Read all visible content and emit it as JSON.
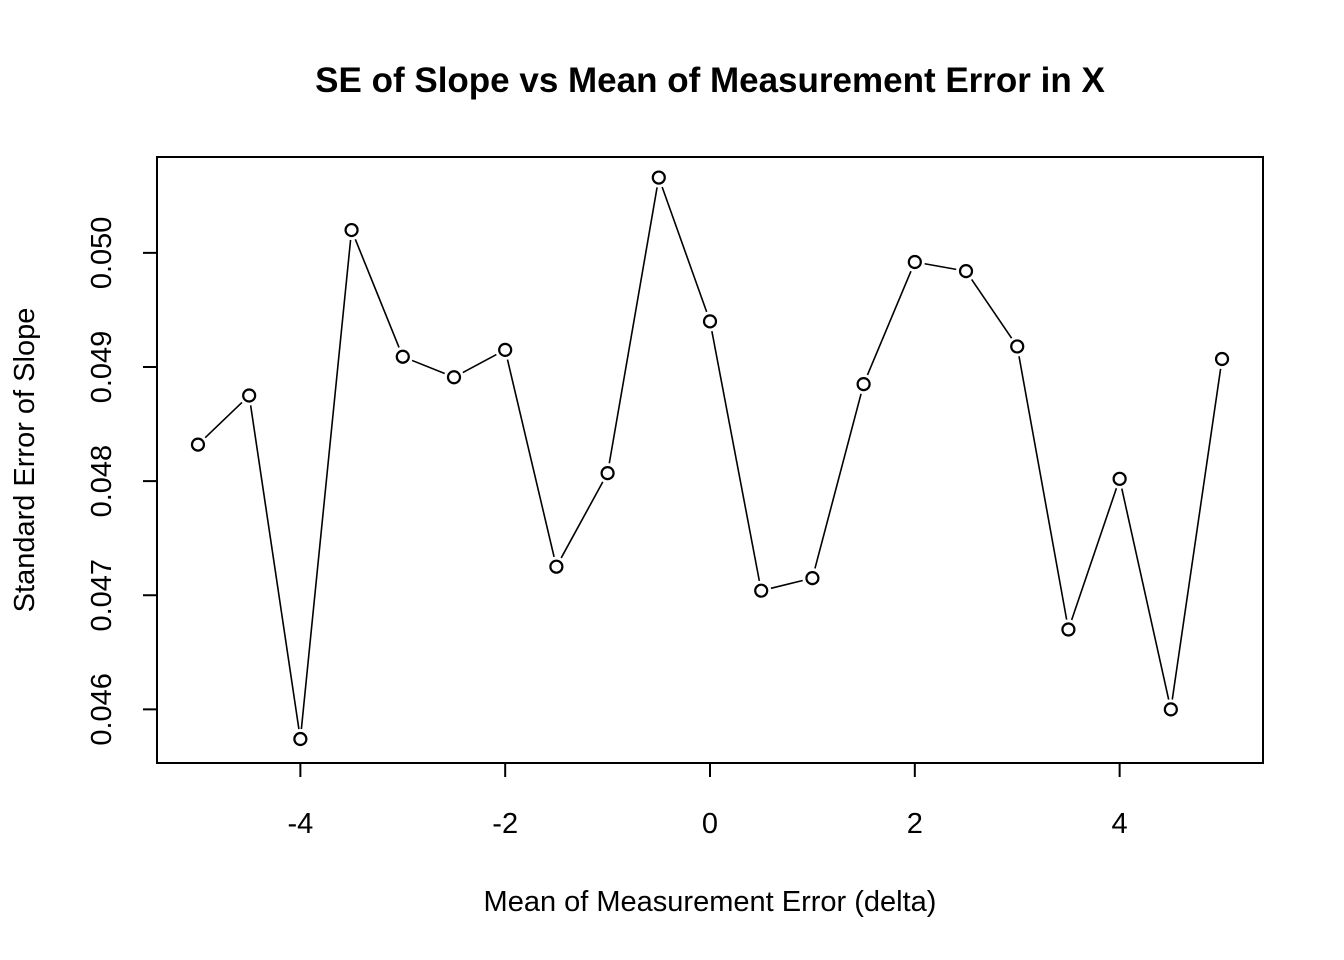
{
  "chart_data": {
    "type": "line",
    "title": "SE of Slope vs Mean of Measurement Error in X",
    "xlabel": "Mean of Measurement Error (delta)",
    "ylabel": "Standard Error of Slope",
    "style": "both points and lines (open circles joined by line segments)",
    "xlim": [
      -5.4,
      5.4
    ],
    "ylim": [
      0.04553,
      0.05084
    ],
    "xticks": [
      -4,
      -2,
      0,
      2,
      4
    ],
    "xtick_labels": [
      "-4",
      "-2",
      "0",
      "2",
      "4"
    ],
    "yticks": [
      0.046,
      0.047,
      0.048,
      0.049,
      0.05
    ],
    "ytick_labels": [
      "0.046",
      "0.047",
      "0.048",
      "0.049",
      "0.050"
    ],
    "grid": false,
    "legend": "none",
    "series": [
      {
        "x": [
          -5,
          -4.5,
          -4,
          -3.5,
          -3,
          -2.5,
          -2,
          -1.5,
          -1,
          -0.5,
          0,
          0.5,
          1,
          1.5,
          2,
          2.5,
          3,
          3.5,
          4,
          4.5,
          5
        ],
        "values": [
          0.04832,
          0.04875,
          0.04574,
          0.0502,
          0.04909,
          0.04891,
          0.04915,
          0.04725,
          0.04807,
          0.05066,
          0.0494,
          0.04704,
          0.04715,
          0.04885,
          0.04992,
          0.04984,
          0.04918,
          0.0467,
          0.04802,
          0.046,
          0.04907
        ]
      }
    ]
  }
}
